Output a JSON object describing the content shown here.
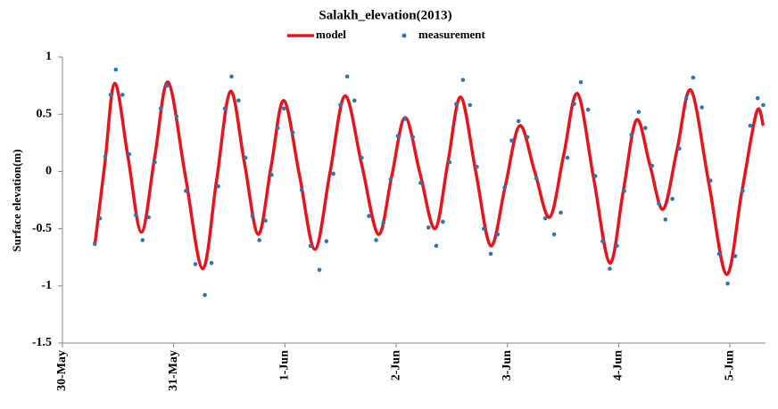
{
  "chart_data": {
    "type": "line",
    "title": "Salakh_elevation(2013)",
    "y_label": "Surface elevation(m)",
    "xlim": [
      0,
      6.32
    ],
    "xticks": [
      {
        "value": 0,
        "label": "30-May"
      },
      {
        "value": 1,
        "label": "31-May"
      },
      {
        "value": 2,
        "label": "1-Jun"
      },
      {
        "value": 3,
        "label": "2-Jun"
      },
      {
        "value": 4,
        "label": "3-Jun"
      },
      {
        "value": 5,
        "label": "4-Jun"
      },
      {
        "value": 6,
        "label": "5-Jun"
      }
    ],
    "ylim": [
      -1.5,
      1
    ],
    "yticks": [
      -1.5,
      -1,
      -0.5,
      0,
      0.5,
      1
    ],
    "grid": false,
    "series": [
      {
        "name": "model",
        "color": "#e8141b",
        "mode": "lines",
        "x": [
          0.29,
          0.38,
          0.47,
          0.59,
          0.71,
          0.83,
          0.95,
          1.105,
          1.26,
          1.385,
          1.51,
          1.635,
          1.76,
          1.875,
          1.99,
          2.13,
          2.27,
          2.405,
          2.54,
          2.69,
          2.84,
          2.96,
          3.08,
          3.215,
          3.35,
          3.465,
          3.58,
          3.715,
          3.85,
          3.98,
          4.11,
          4.245,
          4.38,
          4.505,
          4.63,
          4.775,
          4.92,
          5.04,
          5.16,
          5.28,
          5.4,
          5.525,
          5.65,
          5.81,
          5.97,
          6.105,
          6.24,
          6.3
        ],
        "values": [
          -0.65,
          0.06,
          0.77,
          0.12,
          -0.53,
          0.13,
          0.78,
          -0.04,
          -0.85,
          -0.08,
          0.7,
          0.08,
          -0.55,
          0.04,
          0.62,
          -0.03,
          -0.68,
          -0.01,
          0.66,
          0.06,
          -0.55,
          -0.04,
          0.47,
          -0.02,
          -0.5,
          0.08,
          0.65,
          0,
          -0.65,
          -0.13,
          0.4,
          0,
          -0.4,
          0.14,
          0.68,
          -0.06,
          -0.8,
          -0.18,
          0.45,
          0.06,
          -0.33,
          0.19,
          0.71,
          -0.1,
          -0.9,
          -0.19,
          0.52,
          0.4
        ]
      },
      {
        "name": "measurement",
        "color": "#2e75b6",
        "mode": "markers",
        "x": [
          0.29,
          0.338,
          0.385,
          0.433,
          0.48,
          0.54,
          0.6,
          0.66,
          0.72,
          0.775,
          0.83,
          0.885,
          0.94,
          1.025,
          1.11,
          1.195,
          1.28,
          1.34,
          1.4,
          1.46,
          1.52,
          1.583,
          1.645,
          1.708,
          1.77,
          1.825,
          1.88,
          1.935,
          1.99,
          2.07,
          2.15,
          2.23,
          2.31,
          2.373,
          2.435,
          2.498,
          2.56,
          2.625,
          2.69,
          2.755,
          2.82,
          2.885,
          2.95,
          3.015,
          3.08,
          3.15,
          3.22,
          3.29,
          3.36,
          3.42,
          3.48,
          3.54,
          3.6,
          3.663,
          3.725,
          3.788,
          3.85,
          3.913,
          3.975,
          4.038,
          4.1,
          4.18,
          4.26,
          4.34,
          4.42,
          4.48,
          4.54,
          4.6,
          4.66,
          4.725,
          4.79,
          4.855,
          4.92,
          4.985,
          5.05,
          5.115,
          5.18,
          5.24,
          5.3,
          5.36,
          5.42,
          5.483,
          5.545,
          5.608,
          5.67,
          5.748,
          5.825,
          5.903,
          5.98,
          6.048,
          6.115,
          6.183,
          6.25,
          6.3
        ],
        "values": [
          -0.63,
          -0.41,
          0.13,
          0.67,
          0.89,
          0.67,
          0.15,
          -0.38,
          -0.6,
          -0.4,
          0.08,
          0.55,
          0.75,
          0.48,
          -0.17,
          -0.81,
          -1.08,
          -0.8,
          -0.13,
          0.55,
          0.83,
          0.62,
          0.12,
          -0.39,
          -0.6,
          -0.43,
          -0.03,
          0.38,
          0.55,
          0.34,
          -0.16,
          -0.65,
          -0.86,
          -0.61,
          -0.02,
          0.58,
          0.83,
          0.62,
          0.12,
          -0.39,
          -0.6,
          -0.45,
          -0.07,
          0.31,
          0.46,
          0.3,
          -0.1,
          -0.49,
          -0.65,
          -0.44,
          0.08,
          0.59,
          0.8,
          0.58,
          0.04,
          -0.5,
          -0.72,
          -0.55,
          -0.14,
          0.27,
          0.44,
          0.3,
          -0.06,
          -0.41,
          -0.55,
          -0.36,
          0.12,
          0.59,
          0.78,
          0.54,
          -0.04,
          -0.61,
          -0.85,
          -0.65,
          -0.17,
          0.32,
          0.52,
          0.38,
          0.05,
          -0.28,
          -0.42,
          -0.24,
          0.2,
          0.64,
          0.82,
          0.56,
          -0.08,
          -0.72,
          -0.98,
          -0.74,
          -0.17,
          0.4,
          0.64,
          0.58
        ]
      }
    ]
  }
}
